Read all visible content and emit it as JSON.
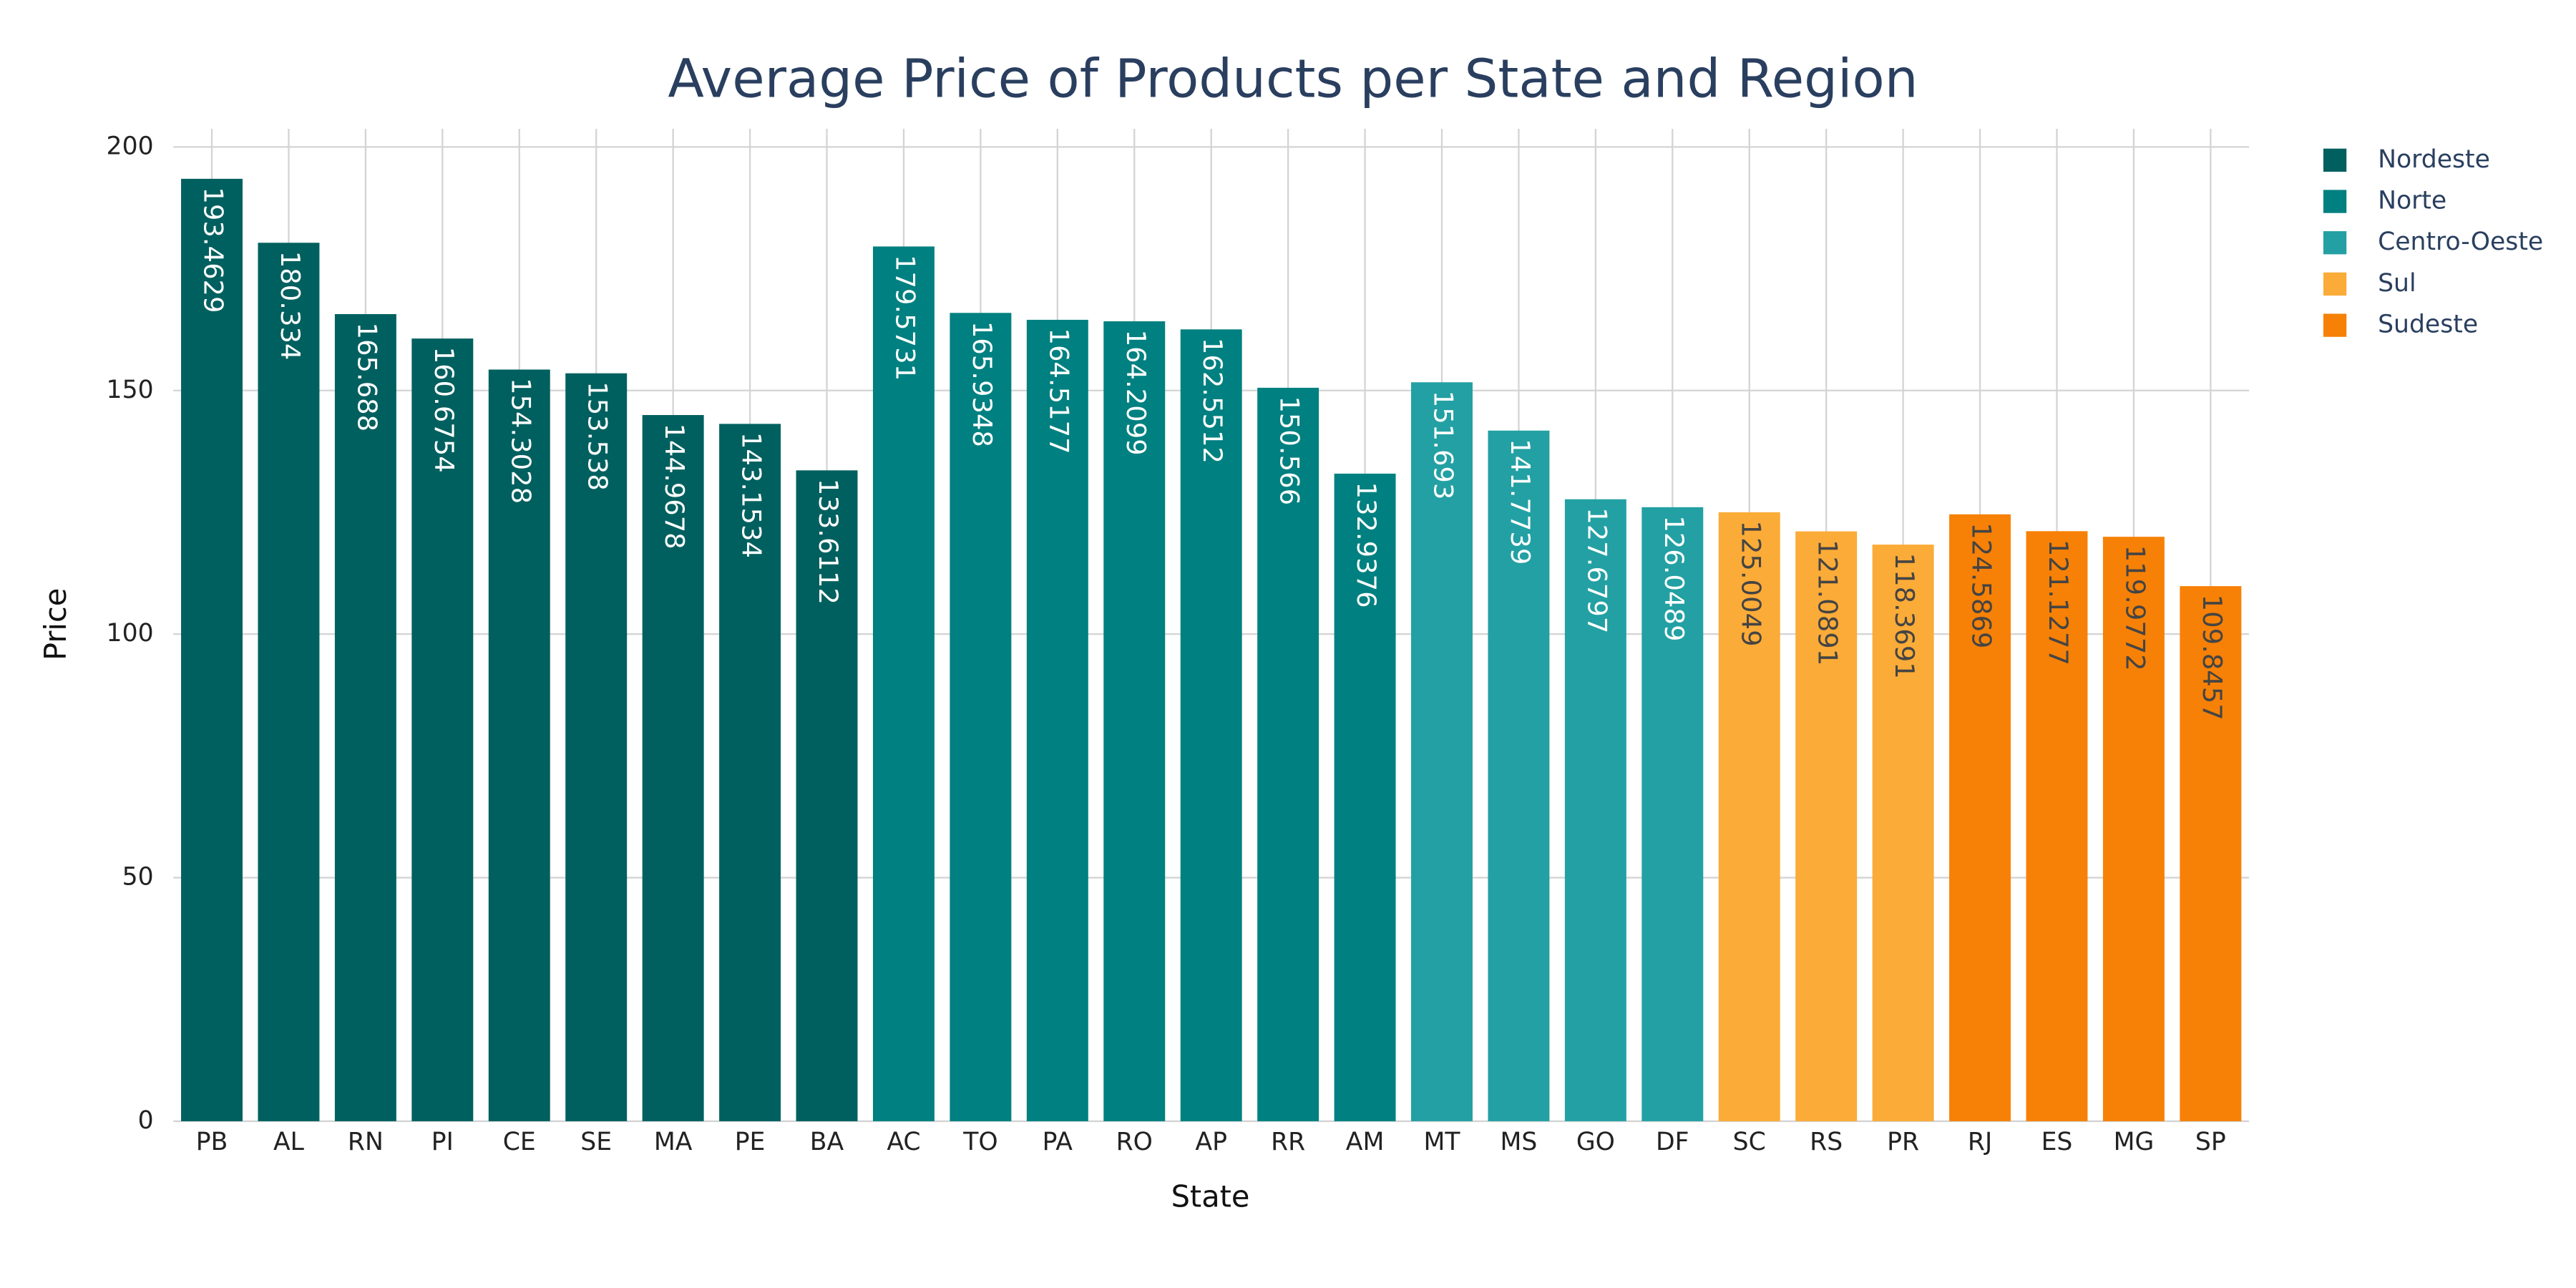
{
  "chart_data": {
    "type": "bar",
    "title": "Average Price of Products per State and Region",
    "x_label": "State",
    "y_label": "Price",
    "ylim": [
      0,
      200
    ],
    "yticks": [
      0,
      50,
      100,
      150,
      200
    ],
    "grid": true,
    "legend": "top-right",
    "series": [
      {
        "name": "Nordeste",
        "color": "#00605f",
        "categories": [
          "PB",
          "AL",
          "RN",
          "PI",
          "CE",
          "SE",
          "MA",
          "PE",
          "BA"
        ],
        "values": [
          193.4629,
          180.334,
          165.688,
          160.6754,
          154.3028,
          153.538,
          144.9678,
          143.1534,
          133.6112
        ]
      },
      {
        "name": "Norte",
        "color": "#008080",
        "categories": [
          "AC",
          "TO",
          "PA",
          "RO",
          "AP",
          "RR",
          "AM"
        ],
        "values": [
          179.5731,
          165.9348,
          164.5177,
          164.2099,
          162.5512,
          150.566,
          132.9376
        ]
      },
      {
        "name": "Centro-Oeste",
        "color": "#23a0a3",
        "categories": [
          "MT",
          "MS",
          "GO",
          "DF"
        ],
        "values": [
          151.693,
          141.7739,
          127.6797,
          126.0489
        ]
      },
      {
        "name": "Sul",
        "color": "#fbab37",
        "categories": [
          "SC",
          "RS",
          "PR"
        ],
        "values": [
          125.0049,
          121.0891,
          118.3691
        ]
      },
      {
        "name": "Sudeste",
        "color": "#f68106",
        "categories": [
          "RJ",
          "ES",
          "MG",
          "SP"
        ],
        "values": [
          124.5869,
          121.1277,
          119.9772,
          109.8457
        ]
      }
    ]
  }
}
